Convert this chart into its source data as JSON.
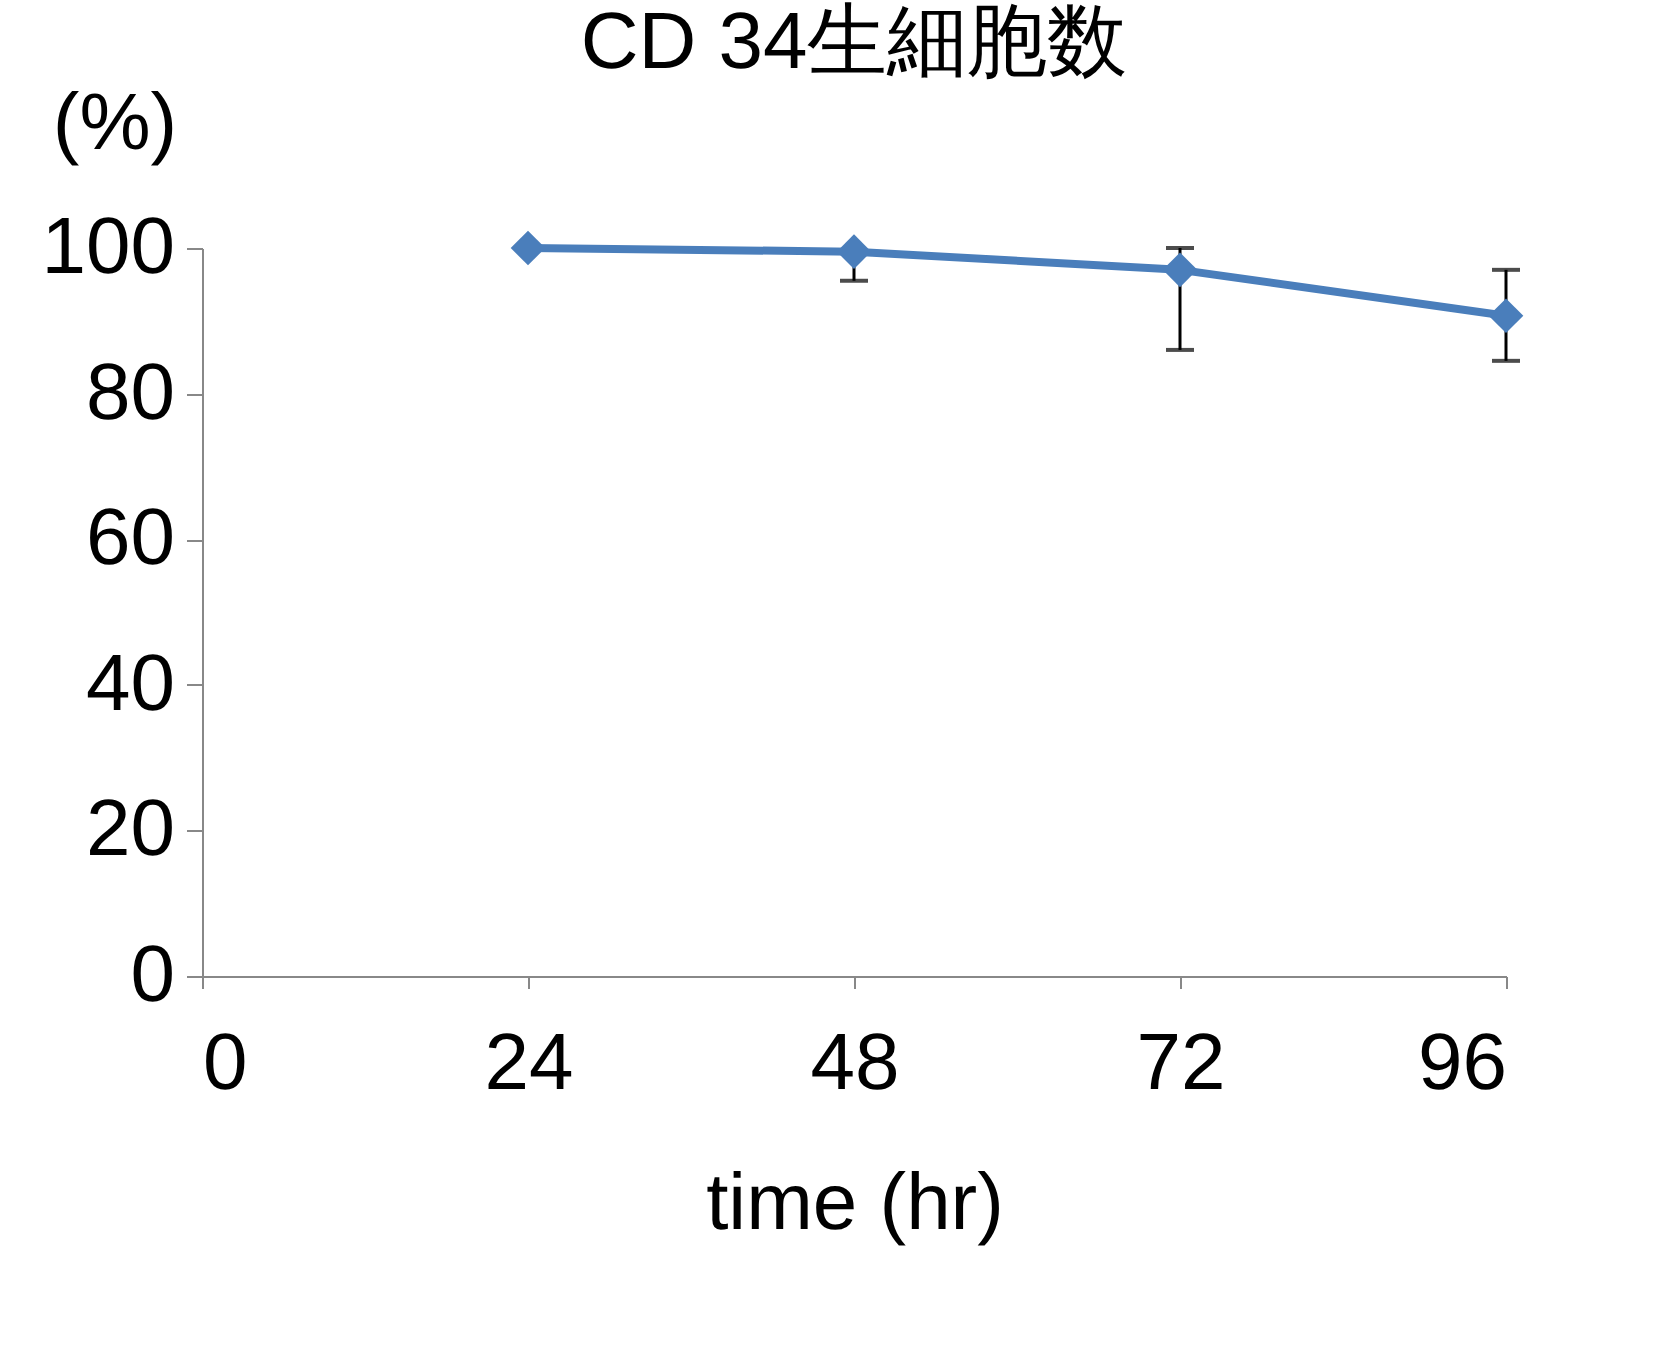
{
  "chart_data": {
    "type": "line",
    "title": "CD 34生細胞数",
    "xlabel": "time (hr)",
    "ylabel": "(%)",
    "x": [
      24,
      48,
      72,
      96
    ],
    "series": [
      {
        "color": "#4a7ebb",
        "values": [
          100,
          99.5,
          97,
          90.7
        ],
        "errors": [
          null,
          [
            95.5,
            99.5
          ],
          [
            86,
            100
          ],
          [
            84.5,
            97
          ]
        ]
      }
    ],
    "xlim": [
      0,
      96
    ],
    "xticks": [
      0,
      24,
      48,
      72,
      96
    ],
    "ylim": [
      0,
      100
    ],
    "yticks": [
      0,
      20,
      40,
      60,
      80,
      100
    ],
    "grid": false,
    "marker": "diamond",
    "line_style": "solid"
  }
}
